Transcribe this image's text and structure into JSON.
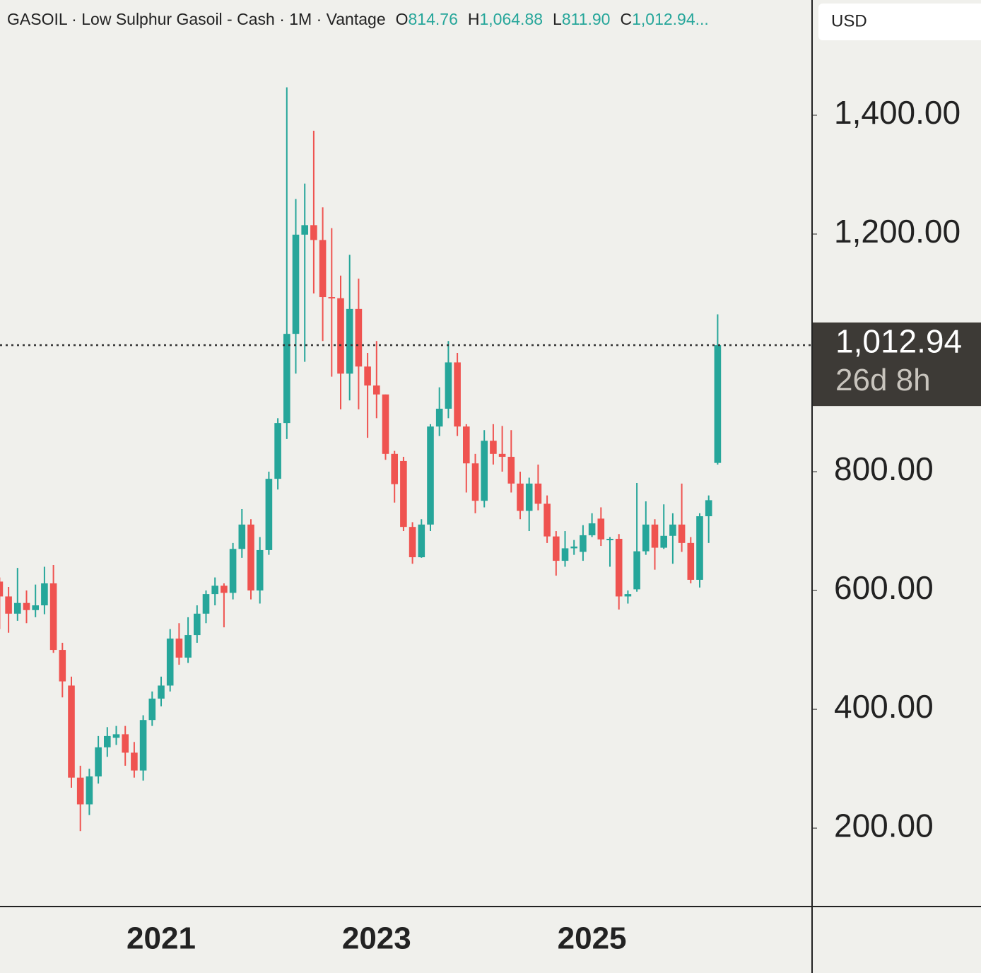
{
  "chart_data": {
    "type": "candlestick",
    "header": {
      "title": "GASOIL · Low Sulphur Gasoil - Cash · 1M · Vantage",
      "fields": [
        {
          "key": "O",
          "value": 814.76,
          "label": "814.76"
        },
        {
          "key": "H",
          "value": 1064.88,
          "label": "1,064.88"
        },
        {
          "key": "L",
          "value": 811.9,
          "label": "811.90"
        },
        {
          "key": "C",
          "value": 1012.94,
          "label": "1,012.94..."
        }
      ]
    },
    "currency": "USD",
    "current_price": {
      "value": 1012.94,
      "label": "1,012.94"
    },
    "countdown": "26d 8h",
    "up_color": "#26a69a",
    "down_color": "#ef5350",
    "grid": false,
    "categories": [
      null,
      null,
      null,
      null,
      null,
      null,
      null,
      null,
      null,
      null,
      null,
      null,
      null,
      null,
      null,
      null,
      null,
      null,
      "2021",
      null,
      null,
      null,
      null,
      null,
      null,
      null,
      null,
      null,
      null,
      null,
      null,
      null,
      null,
      null,
      null,
      null,
      null,
      null,
      null,
      null,
      null,
      null,
      "2023",
      null,
      null,
      null,
      null,
      null,
      null,
      null,
      null,
      null,
      null,
      null,
      null,
      null,
      null,
      null,
      null,
      null,
      null,
      null,
      null,
      null,
      null,
      null,
      "2025",
      null,
      null,
      null,
      null,
      null,
      null,
      null,
      null,
      null,
      null,
      null,
      null,
      null,
      null
    ],
    "open": [
      615,
      590,
      561,
      579,
      567,
      575,
      612,
      500,
      440,
      285,
      240,
      287,
      336,
      352,
      358,
      327,
      297,
      382,
      418,
      440,
      519,
      487,
      525,
      561,
      594,
      608,
      596,
      670,
      711,
      600,
      668,
      788,
      882,
      1032,
      1199,
      1215,
      1190,
      1094,
      1092,
      965,
      1074,
      977,
      945,
      930,
      830,
      818,
      707,
      656,
      711,
      876,
      906,
      984,
      876,
      814,
      751,
      852,
      830,
      825,
      780,
      734,
      780,
      746,
      691,
      650,
      671,
      665,
      693,
      721,
      686,
      687,
      590,
      602,
      666,
      711,
      672,
      692,
      711,
      680,
      618,
      725,
      814.76
    ],
    "high": [
      622,
      606,
      638,
      600,
      610,
      640,
      643,
      512,
      455,
      305,
      300,
      355,
      370,
      372,
      372,
      345,
      390,
      430,
      455,
      535,
      545,
      555,
      575,
      600,
      622,
      612,
      680,
      737,
      720,
      690,
      800,
      890,
      1447,
      1259,
      1285,
      1374,
      1245,
      1210,
      1130,
      1165,
      1125,
      1000,
      1020,
      930,
      835,
      825,
      715,
      720,
      880,
      942,
      1020,
      1000,
      880,
      830,
      870,
      880,
      877,
      870,
      800,
      790,
      812,
      760,
      700,
      700,
      685,
      710,
      730,
      740,
      690,
      695,
      600,
      781,
      750,
      720,
      745,
      730,
      780,
      690,
      730,
      760,
      1064.88
    ],
    "low": [
      535,
      529,
      549,
      545,
      555,
      560,
      495,
      420,
      268,
      195,
      222,
      275,
      320,
      340,
      305,
      285,
      280,
      372,
      405,
      430,
      475,
      478,
      512,
      545,
      575,
      538,
      585,
      655,
      585,
      578,
      660,
      770,
      855,
      965,
      985,
      1100,
      1020,
      960,
      905,
      920,
      905,
      857,
      890,
      820,
      748,
      700,
      645,
      655,
      700,
      860,
      890,
      860,
      765,
      730,
      740,
      812,
      800,
      765,
      720,
      700,
      735,
      680,
      625,
      640,
      660,
      650,
      690,
      675,
      640,
      568,
      578,
      598,
      660,
      635,
      670,
      645,
      665,
      612,
      605,
      680,
      811.9
    ],
    "close": [
      590,
      561,
      579,
      567,
      575,
      612,
      500,
      447,
      285,
      240,
      287,
      336,
      355,
      358,
      327,
      297,
      382,
      418,
      440,
      519,
      487,
      525,
      561,
      594,
      608,
      596,
      670,
      711,
      600,
      668,
      788,
      882,
      1032,
      1199,
      1215,
      1190,
      1094,
      1092,
      965,
      1074,
      977,
      945,
      930,
      830,
      779,
      707,
      656,
      711,
      876,
      906,
      984,
      876,
      814,
      751,
      852,
      830,
      825,
      780,
      734,
      780,
      746,
      691,
      650,
      671,
      674,
      693,
      713,
      686,
      687,
      590,
      594,
      666,
      711,
      672,
      692,
      711,
      680,
      618,
      725,
      752,
      1012.94
    ],
    "ylim": [
      68,
      1594
    ],
    "yticks": [
      {
        "value": 200,
        "label": "200.00"
      },
      {
        "value": 400,
        "label": "400.00"
      },
      {
        "value": 600,
        "label": "600.00"
      },
      {
        "value": 800,
        "label": "800.00"
      },
      {
        "value": 1200,
        "label": "1,200.00"
      },
      {
        "value": 1400,
        "label": "1,400.00"
      }
    ]
  }
}
